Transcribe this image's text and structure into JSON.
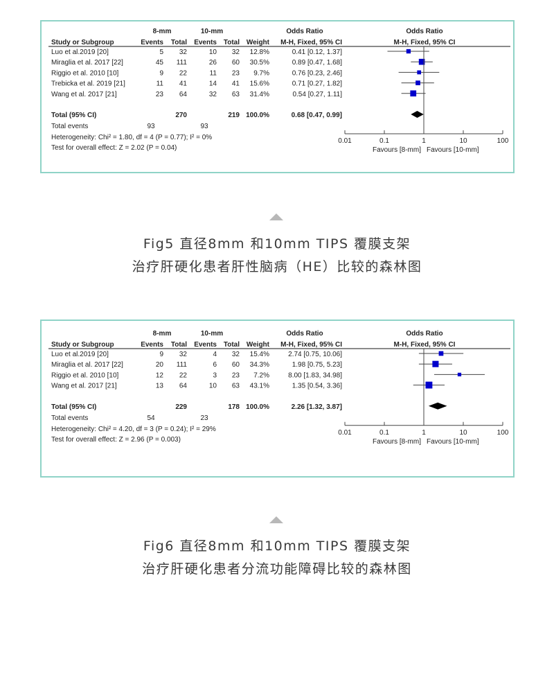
{
  "colors": {
    "border": "#8fd3c7",
    "square": "#0000cc",
    "diamond": "#000000",
    "caption": "#3a3a3a"
  },
  "chart_data": [
    {
      "type": "forest",
      "headers": {
        "group1": "8-mm",
        "group2": "10-mm",
        "or_left": "Odds Ratio",
        "study": "Study or Subgroup",
        "events": "Events",
        "total": "Total",
        "weight": "Weight",
        "method": "M-H, Fixed, 95% CI",
        "or_right": "Odds Ratio",
        "method_right": "M-H, Fixed, 95% CI"
      },
      "studies": [
        {
          "name": "Luo et al.2019 [20]",
          "e1": "5",
          "t1": "32",
          "e2": "10",
          "t2": "32",
          "weight": "12.8%",
          "ci_text": "0.41 [0.12, 1.37]",
          "or": 0.41,
          "lo": 0.12,
          "hi": 1.37,
          "w": 12.8
        },
        {
          "name": "Miraglia et al. 2017 [22]",
          "e1": "45",
          "t1": "111",
          "e2": "26",
          "t2": "60",
          "weight": "30.5%",
          "ci_text": "0.89 [0.47, 1.68]",
          "or": 0.89,
          "lo": 0.47,
          "hi": 1.68,
          "w": 30.5
        },
        {
          "name": "Riggio et al. 2010 [10]",
          "e1": "9",
          "t1": "22",
          "e2": "11",
          "t2": "23",
          "weight": "9.7%",
          "ci_text": "0.76 [0.23, 2.46]",
          "or": 0.76,
          "lo": 0.23,
          "hi": 2.46,
          "w": 9.7
        },
        {
          "name": "Trebicka et al. 2019 [21]",
          "e1": "11",
          "t1": "41",
          "e2": "14",
          "t2": "41",
          "weight": "15.6%",
          "ci_text": "0.71 [0.27, 1.82]",
          "or": 0.71,
          "lo": 0.27,
          "hi": 1.82,
          "w": 15.6
        },
        {
          "name": "Wang et al. 2017 [21]",
          "e1": "23",
          "t1": "64",
          "e2": "32",
          "t2": "63",
          "weight": "31.4%",
          "ci_text": "0.54 [0.27, 1.11]",
          "or": 0.54,
          "lo": 0.27,
          "hi": 1.11,
          "w": 31.4
        }
      ],
      "total": {
        "name": "Total (95% CI)",
        "t1": "270",
        "t2": "219",
        "weight": "100.0%",
        "ci_text": "0.68 [0.47, 0.99]",
        "or": 0.68,
        "lo": 0.47,
        "hi": 0.99
      },
      "total_events": {
        "label": "Total events",
        "e1": "93",
        "e2": "93"
      },
      "heterogeneity": "Heterogeneity: Chi² = 1.80, df = 4 (P = 0.77); I² = 0%",
      "overall_effect": "Test for overall effect: Z = 2.02 (P = 0.04)",
      "axis": {
        "scale": "log",
        "ticks": [
          "0.01",
          "0.1",
          "1",
          "10",
          "100"
        ],
        "xlim": [
          0.01,
          100
        ]
      },
      "favours_left": "Favours [8-mm]",
      "favours_right": "Favours [10-mm]",
      "caption": [
        "Fig5 直径8mm 和10mm TIPS 覆膜支架",
        "治疗肝硬化患者肝性脑病（HE）比较的森林图"
      ]
    },
    {
      "type": "forest",
      "headers": {
        "group1": "8-mm",
        "group2": "10-mm",
        "or_left": "Odds Ratio",
        "study": "Study or Subgroup",
        "events": "Events",
        "total": "Total",
        "weight": "Weight",
        "method": "M-H, Fixed, 95% CI",
        "or_right": "Odds Ratio",
        "method_right": "M-H, Fixed, 95% CI"
      },
      "studies": [
        {
          "name": "Luo et al.2019 [20]",
          "e1": "9",
          "t1": "32",
          "e2": "4",
          "t2": "32",
          "weight": "15.4%",
          "ci_text": "2.74 [0.75, 10.06]",
          "or": 2.74,
          "lo": 0.75,
          "hi": 10.06,
          "w": 15.4
        },
        {
          "name": "Miraglia et al. 2017 [22]",
          "e1": "20",
          "t1": "111",
          "e2": "6",
          "t2": "60",
          "weight": "34.3%",
          "ci_text": "1.98 [0.75, 5.23]",
          "or": 1.98,
          "lo": 0.75,
          "hi": 5.23,
          "w": 34.3
        },
        {
          "name": "Riggio et al. 2010 [10]",
          "e1": "12",
          "t1": "22",
          "e2": "3",
          "t2": "23",
          "weight": "7.2%",
          "ci_text": "8.00 [1.83, 34.98]",
          "or": 8.0,
          "lo": 1.83,
          "hi": 34.98,
          "w": 7.2
        },
        {
          "name": "Wang et al. 2017 [21]",
          "e1": "13",
          "t1": "64",
          "e2": "10",
          "t2": "63",
          "weight": "43.1%",
          "ci_text": "1.35 [0.54, 3.36]",
          "or": 1.35,
          "lo": 0.54,
          "hi": 3.36,
          "w": 43.1
        }
      ],
      "total": {
        "name": "Total (95% CI)",
        "t1": "229",
        "t2": "178",
        "weight": "100.0%",
        "ci_text": "2.26 [1.32, 3.87]",
        "or": 2.26,
        "lo": 1.32,
        "hi": 3.87
      },
      "total_events": {
        "label": "Total events",
        "e1": "54",
        "e2": "23"
      },
      "heterogeneity": "Heterogeneity: Chi² = 4.20, df = 3 (P = 0.24); I² = 29%",
      "overall_effect": "Test for overall effect: Z = 2.96 (P = 0.003)",
      "axis": {
        "scale": "log",
        "ticks": [
          "0.01",
          "0.1",
          "1",
          "10",
          "100"
        ],
        "xlim": [
          0.01,
          100
        ]
      },
      "favours_left": "Favours [8-mm]",
      "favours_right": "Favours [10-mm]",
      "caption": [
        "Fig6 直径8mm 和10mm TIPS 覆膜支架",
        "治疗肝硬化患者分流功能障碍比较的森林图"
      ]
    }
  ]
}
